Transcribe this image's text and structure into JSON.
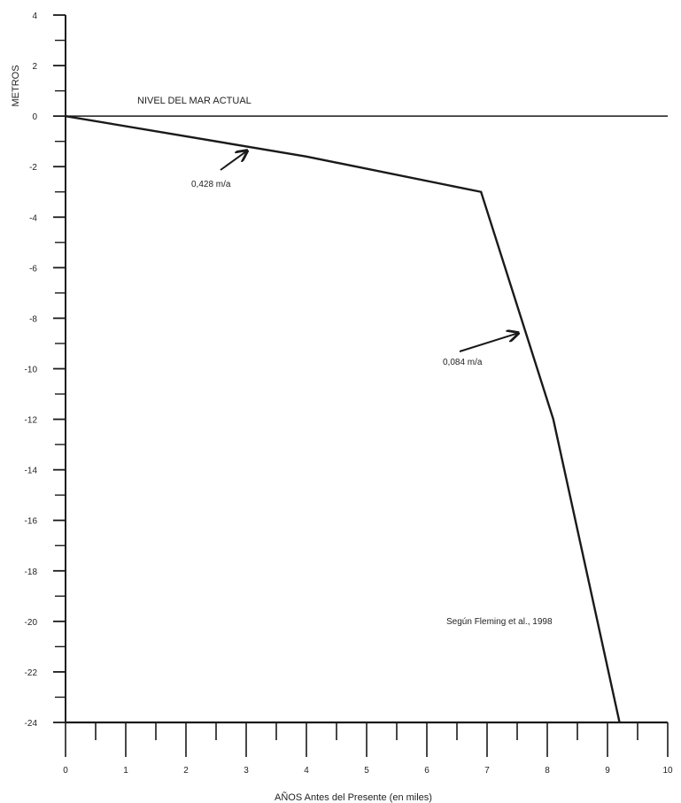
{
  "chart_data": {
    "type": "line",
    "xlabel": "AÑOS Antes del Presente (en miles)",
    "ylabel": "METROS",
    "xlim": [
      0,
      10
    ],
    "ylim": [
      -24,
      4
    ],
    "x_ticks": [
      0,
      1,
      2,
      3,
      4,
      5,
      6,
      7,
      8,
      9,
      10
    ],
    "y_ticks": [
      4,
      2,
      0,
      -2,
      -4,
      -6,
      -8,
      -10,
      -12,
      -14,
      -16,
      -18,
      -20,
      -22,
      -24
    ],
    "grid": false,
    "series": [
      {
        "points": [
          {
            "x": 0,
            "y": 0
          },
          {
            "x": 4,
            "y": -1.6
          },
          {
            "x": 6.9,
            "y": -3
          },
          {
            "x": 8.1,
            "y": -12
          },
          {
            "x": 9.2,
            "y": -24
          }
        ],
        "color": "#1a1a1a"
      }
    ],
    "reference_line": {
      "label": "NIVEL DEL MAR ACTUAL",
      "y": 0
    },
    "annotations": [
      {
        "text": "0,428 m/a",
        "arrow_to": {
          "x": 3,
          "y": -1.4
        }
      },
      {
        "text": "0,084 m/a",
        "arrow_to": {
          "x": 7.5,
          "y": -8.6
        }
      }
    ],
    "source": "Según Fleming et al., 1998"
  }
}
